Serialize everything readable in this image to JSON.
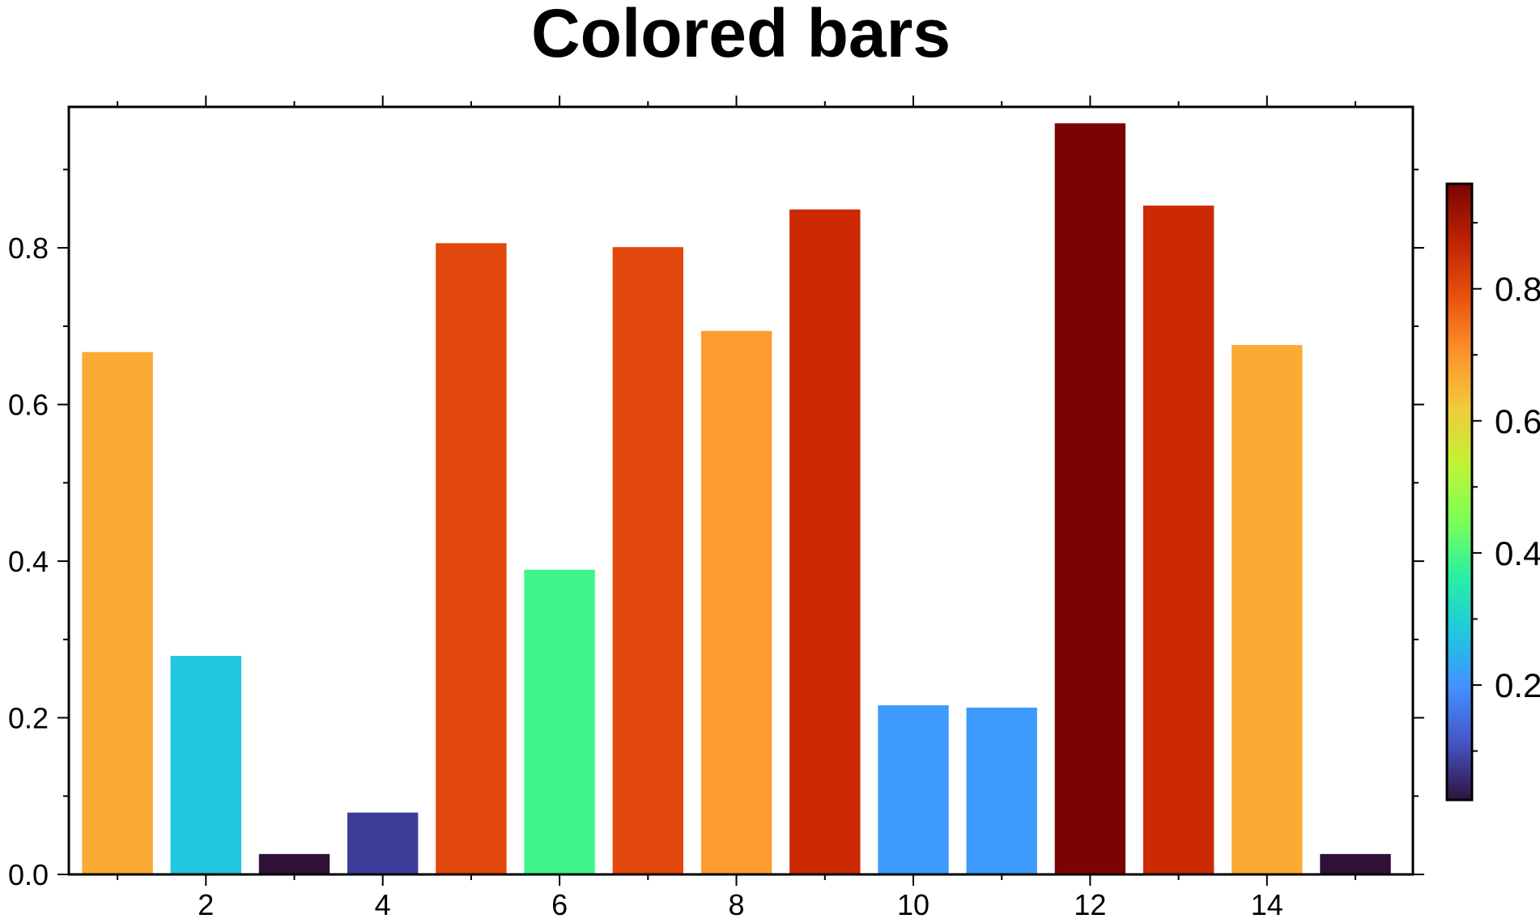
{
  "chart_data": {
    "type": "bar",
    "title": "Colored bars",
    "xlabel": "",
    "ylabel": "",
    "x": [
      1,
      2,
      3,
      4,
      5,
      6,
      7,
      8,
      9,
      10,
      11,
      12,
      13,
      14,
      15
    ],
    "values": [
      0.667,
      0.279,
      0.026,
      0.079,
      0.806,
      0.389,
      0.801,
      0.694,
      0.849,
      0.216,
      0.213,
      0.959,
      0.854,
      0.676,
      0.026
    ],
    "colors": [
      "#fbaa34",
      "#23c6e1",
      "#2f1138",
      "#3d3d9a",
      "#e2470b",
      "#3ff58b",
      "#e2470b",
      "#fd9b2e",
      "#cb2a03",
      "#3d9bfd",
      "#3d9bfd",
      "#7a0403",
      "#cb2a03",
      "#fbaa34",
      "#2f1138"
    ],
    "xlim": [
      0.45,
      15.65
    ],
    "ylim": [
      0,
      0.98
    ],
    "xticks": [
      "2",
      "4",
      "6",
      "8",
      "10",
      "12",
      "14"
    ],
    "xtick_values": [
      2,
      4,
      6,
      8,
      10,
      12,
      14
    ],
    "yticks": [
      "0.0",
      "0.2",
      "0.4",
      "0.6",
      "0.8"
    ],
    "ytick_values": [
      0.0,
      0.2,
      0.4,
      0.6,
      0.8
    ],
    "grid": false,
    "colorbar": {
      "colormap": "turbo",
      "range": [
        0.026,
        0.959
      ],
      "ticks": [
        "0.2",
        "0.4",
        "0.6",
        "0.8"
      ],
      "tick_values": [
        0.2,
        0.4,
        0.6,
        0.8
      ],
      "gradient_colors": [
        "#30123b",
        "#4454c4",
        "#4490fe",
        "#1fc8de",
        "#29efa2",
        "#7dff56",
        "#c1f334",
        "#f1ca3a",
        "#fe922a",
        "#ea4f0d",
        "#be2102",
        "#7a0403"
      ]
    }
  }
}
